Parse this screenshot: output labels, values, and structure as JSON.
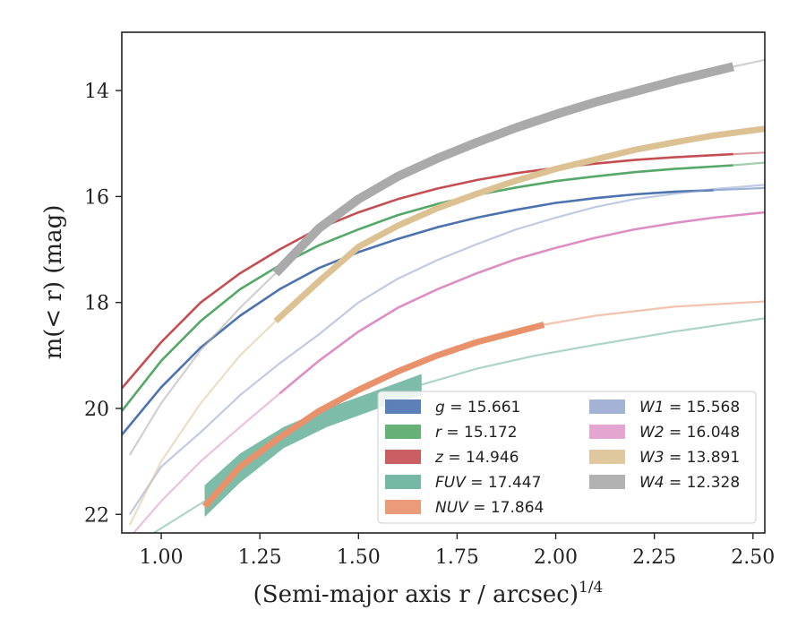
{
  "chart_data": {
    "type": "line",
    "xlabel": "(Semi-major axis r / arcsec)",
    "xlabel_sup": "1/4",
    "ylabel": "m(< r) (mag)",
    "xlim": [
      0.9,
      2.53
    ],
    "ylim": [
      22.35,
      12.9
    ],
    "y_inverted": true,
    "xticks": [
      "1.00",
      "1.25",
      "1.50",
      "1.75",
      "2.00",
      "2.25",
      "2.50"
    ],
    "xtick_values": [
      1.0,
      1.25,
      1.5,
      1.75,
      2.0,
      2.25,
      2.5
    ],
    "yticks": [
      "14",
      "16",
      "18",
      "20",
      "22"
    ],
    "ytick_values": [
      14,
      16,
      18,
      20,
      22
    ],
    "grid": false,
    "legend_position": "lower-right",
    "legend_columns": 2,
    "series": [
      {
        "name": "g",
        "total": "15.661",
        "color": "#4c72b0",
        "style": "line",
        "x_bold": [
          0.9,
          1.0,
          1.1,
          1.2,
          1.3,
          1.4,
          1.5,
          1.6,
          1.7,
          1.8,
          1.9,
          2.0,
          2.1,
          2.2,
          2.3,
          2.4
        ],
        "y_bold": [
          20.5,
          19.6,
          18.85,
          18.25,
          17.75,
          17.35,
          17.05,
          16.8,
          16.58,
          16.4,
          16.25,
          16.12,
          16.03,
          15.96,
          15.91,
          15.88
        ],
        "x_faint": [
          2.4,
          2.53
        ],
        "y_faint": [
          15.88,
          15.84
        ]
      },
      {
        "name": "r",
        "total": "15.172",
        "color": "#55a868",
        "style": "line",
        "x_bold": [
          0.9,
          1.0,
          1.1,
          1.2,
          1.3,
          1.4,
          1.5,
          1.6,
          1.7,
          1.8,
          1.9,
          2.0,
          2.1,
          2.2,
          2.3,
          2.45
        ],
        "y_bold": [
          20.05,
          19.1,
          18.35,
          17.75,
          17.3,
          16.92,
          16.62,
          16.35,
          16.14,
          15.97,
          15.83,
          15.71,
          15.62,
          15.54,
          15.48,
          15.41
        ],
        "x_faint": [
          2.45,
          2.53
        ],
        "y_faint": [
          15.41,
          15.36
        ]
      },
      {
        "name": "z",
        "total": "14.946",
        "color": "#c44e52",
        "style": "line",
        "x_bold": [
          0.9,
          1.0,
          1.1,
          1.2,
          1.3,
          1.4,
          1.5,
          1.6,
          1.7,
          1.8,
          1.9,
          2.0,
          2.1,
          2.2,
          2.3,
          2.45
        ],
        "y_bold": [
          19.62,
          18.75,
          18.0,
          17.45,
          17.0,
          16.6,
          16.3,
          16.05,
          15.85,
          15.69,
          15.56,
          15.46,
          15.38,
          15.31,
          15.26,
          15.2
        ],
        "x_faint": [
          2.45,
          2.53
        ],
        "y_faint": [
          15.2,
          15.17
        ]
      },
      {
        "name": "FUV",
        "total": "17.447",
        "color": "#67b09b",
        "style": "band",
        "x": [
          1.11,
          1.2,
          1.31,
          1.42,
          1.55,
          1.66
        ],
        "y_upper": [
          21.45,
          20.85,
          20.35,
          20.0,
          19.65,
          19.35
        ],
        "y_lower": [
          22.05,
          21.4,
          20.75,
          20.35,
          20.0,
          19.75
        ],
        "x_faint": [
          0.97,
          1.11,
          1.66,
          1.8,
          1.95,
          2.1,
          2.3,
          2.53
        ],
        "y_faint": [
          22.4,
          21.75,
          19.55,
          19.25,
          19.0,
          18.8,
          18.55,
          18.3
        ]
      },
      {
        "name": "NUV",
        "total": "17.864",
        "color": "#e8916b",
        "style": "thick",
        "x_bold": [
          1.11,
          1.2,
          1.3,
          1.4,
          1.5,
          1.6,
          1.7,
          1.8,
          1.97
        ],
        "y_bold": [
          21.85,
          21.1,
          20.55,
          20.05,
          19.65,
          19.3,
          19.0,
          18.75,
          18.42
        ],
        "x_faint": [
          1.97,
          2.1,
          2.3,
          2.53
        ],
        "y_faint": [
          18.42,
          18.25,
          18.08,
          17.98
        ]
      },
      {
        "name": "W1",
        "total": "15.568",
        "color": "#8c9fca",
        "style": "faint",
        "x_bold": [],
        "y_bold": [],
        "x_faint": [
          0.92,
          1.0,
          1.1,
          1.2,
          1.3,
          1.4,
          1.5,
          1.6,
          1.7,
          1.8,
          1.9,
          2.0,
          2.1,
          2.2,
          2.3,
          2.4,
          2.53
        ],
        "y_faint": [
          22.0,
          21.1,
          20.45,
          19.75,
          19.15,
          18.6,
          18.0,
          17.55,
          17.2,
          16.9,
          16.62,
          16.4,
          16.2,
          16.05,
          15.95,
          15.86,
          15.78
        ]
      },
      {
        "name": "W2",
        "total": "16.048",
        "color": "#dd8ec4",
        "style": "faint",
        "x_bold": [
          1.3,
          1.4,
          1.5,
          1.6,
          1.7,
          1.8,
          1.9,
          2.0,
          2.1,
          2.2,
          2.3,
          2.4,
          2.53
        ],
        "y_bold": [
          19.72,
          19.1,
          18.55,
          18.1,
          17.75,
          17.45,
          17.18,
          16.97,
          16.78,
          16.62,
          16.5,
          16.4,
          16.3
        ],
        "x_faint": [
          0.93,
          1.0,
          1.1,
          1.2,
          1.3
        ],
        "y_faint": [
          22.35,
          21.75,
          21.0,
          20.35,
          19.72
        ]
      },
      {
        "name": "W3",
        "total": "13.891",
        "color": "#dcc193",
        "style": "thick",
        "x_bold": [
          1.29,
          1.4,
          1.5,
          1.6,
          1.7,
          1.8,
          1.9,
          2.0,
          2.1,
          2.2,
          2.3,
          2.4,
          2.53
        ],
        "y_bold": [
          18.35,
          17.6,
          16.95,
          16.55,
          16.22,
          15.95,
          15.7,
          15.48,
          15.3,
          15.12,
          14.98,
          14.85,
          14.72
        ],
        "x_faint": [
          0.92,
          1.0,
          1.1,
          1.2,
          1.29
        ],
        "y_faint": [
          22.2,
          21.0,
          19.9,
          19.0,
          18.35
        ]
      },
      {
        "name": "W4",
        "total": "12.328",
        "color": "#aaaaaa",
        "style": "thick",
        "x_bold": [
          1.29,
          1.4,
          1.5,
          1.6,
          1.7,
          1.8,
          1.9,
          2.0,
          2.1,
          2.2,
          2.3,
          2.45
        ],
        "y_bold": [
          17.45,
          16.6,
          16.05,
          15.62,
          15.28,
          14.98,
          14.7,
          14.45,
          14.22,
          14.02,
          13.82,
          13.55
        ],
        "x_faint": [
          0.92,
          1.0,
          1.1,
          1.2,
          1.29,
          2.45,
          2.53
        ],
        "y_faint": [
          20.88,
          19.9,
          18.9,
          18.1,
          17.45,
          13.55,
          13.42
        ]
      }
    ]
  }
}
